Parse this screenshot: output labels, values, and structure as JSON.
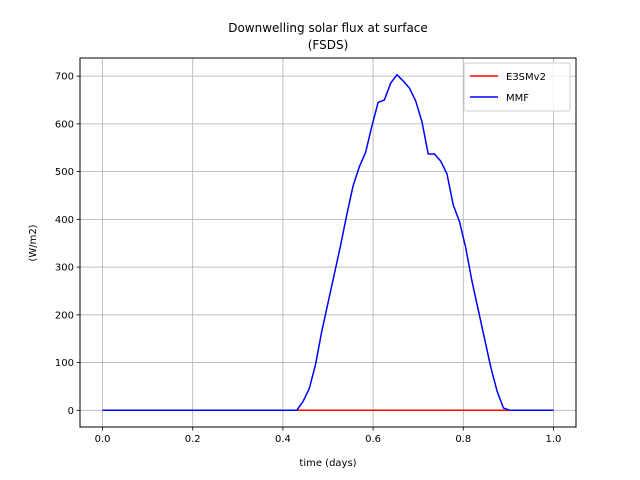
{
  "chart_data": {
    "type": "line",
    "title": "Downwelling solar flux at surface",
    "subtitle": "(FSDS)",
    "xlabel": "time (days)",
    "ylabel": "(W/m2)",
    "xlim": [
      -0.05,
      1.05
    ],
    "ylim": [
      -35,
      738
    ],
    "xticks": [
      0.0,
      0.2,
      0.4,
      0.6,
      0.8,
      1.0
    ],
    "xtick_labels": [
      "0.0",
      "0.2",
      "0.4",
      "0.6",
      "0.8",
      "1.0"
    ],
    "yticks": [
      0,
      100,
      200,
      300,
      400,
      500,
      600,
      700
    ],
    "ytick_labels": [
      "0",
      "100",
      "200",
      "300",
      "400",
      "500",
      "600",
      "700"
    ],
    "grid": true,
    "legend_position": "top-right",
    "series": [
      {
        "name": "E3SMv2",
        "color": "#ff0000",
        "x": [
          0.0,
          0.43,
          1.0
        ],
        "y": [
          null,
          0,
          0
        ]
      },
      {
        "name": "MMF",
        "color": "#0000ff",
        "x": [
          0.0,
          0.4167,
          0.4306,
          0.4444,
          0.4583,
          0.4722,
          0.4861,
          0.5,
          0.5139,
          0.5278,
          0.5417,
          0.5556,
          0.5694,
          0.5833,
          0.5972,
          0.6111,
          0.625,
          0.6389,
          0.6528,
          0.6667,
          0.6806,
          0.6944,
          0.7083,
          0.7222,
          0.7361,
          0.75,
          0.7639,
          0.7778,
          0.7917,
          0.8056,
          0.8194,
          0.8333,
          0.8472,
          0.8611,
          0.875,
          0.8889,
          0.9028,
          1.0
        ],
        "y": [
          0,
          0,
          0,
          18,
          45,
          95,
          165,
          225,
          285,
          345,
          410,
          470,
          510,
          540,
          595,
          645,
          650,
          685,
          703,
          690,
          675,
          648,
          605,
          537,
          537,
          522,
          495,
          430,
          395,
          340,
          270,
          210,
          150,
          90,
          40,
          5,
          0,
          0
        ]
      }
    ]
  }
}
